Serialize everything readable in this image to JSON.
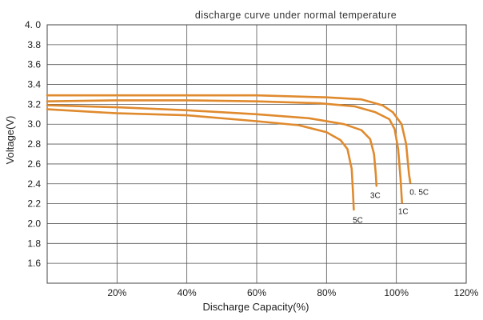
{
  "chart_data": {
    "type": "line",
    "title": "discharge curve under normal temperature",
    "xlabel": "Discharge Capacity(%)",
    "ylabel": "Voltage(V)",
    "xlim": [
      0,
      120
    ],
    "ylim": [
      1.4,
      4.0
    ],
    "grid": true,
    "x_ticks": [
      {
        "value": 20,
        "label": "20%"
      },
      {
        "value": 40,
        "label": "40%"
      },
      {
        "value": 60,
        "label": "60%"
      },
      {
        "value": 80,
        "label": "80%"
      },
      {
        "value": 100,
        "label": "100%"
      },
      {
        "value": 120,
        "label": "120%"
      }
    ],
    "y_ticks": [
      {
        "value": 1.6,
        "label": "1.6"
      },
      {
        "value": 1.8,
        "label": "1.8"
      },
      {
        "value": 2.0,
        "label": "2.0"
      },
      {
        "value": 2.2,
        "label": "2.2"
      },
      {
        "value": 2.4,
        "label": "2.4"
      },
      {
        "value": 2.6,
        "label": "2.6"
      },
      {
        "value": 2.8,
        "label": "2.8"
      },
      {
        "value": 3.0,
        "label": "3.0"
      },
      {
        "value": 3.2,
        "label": "3.2"
      },
      {
        "value": 3.4,
        "label": "3.4"
      },
      {
        "value": 3.6,
        "label": "3.6"
      },
      {
        "value": 3.8,
        "label": "3.8"
      },
      {
        "value": 4.0,
        "label": "4. 0"
      }
    ],
    "line_color": "#e08a2e",
    "series": [
      {
        "name": "0. 5C",
        "points": [
          [
            0,
            3.29
          ],
          [
            20,
            3.29
          ],
          [
            40,
            3.29
          ],
          [
            60,
            3.29
          ],
          [
            80,
            3.27
          ],
          [
            90,
            3.25
          ],
          [
            96,
            3.19
          ],
          [
            99,
            3.12
          ],
          [
            101.5,
            3.0
          ],
          [
            102.8,
            2.8
          ],
          [
            103.6,
            2.5
          ],
          [
            104,
            2.41
          ]
        ],
        "label_at": [
          103.8,
          2.32
        ]
      },
      {
        "name": "1C",
        "points": [
          [
            0,
            3.23
          ],
          [
            20,
            3.24
          ],
          [
            40,
            3.24
          ],
          [
            60,
            3.23
          ],
          [
            78,
            3.21
          ],
          [
            88,
            3.18
          ],
          [
            94,
            3.12
          ],
          [
            98,
            3.05
          ],
          [
            99.5,
            2.95
          ],
          [
            100.5,
            2.75
          ],
          [
            101.2,
            2.45
          ],
          [
            101.6,
            2.21
          ]
        ],
        "label_at": [
          100.5,
          2.13
        ]
      },
      {
        "name": "3C",
        "points": [
          [
            0,
            3.19
          ],
          [
            20,
            3.17
          ],
          [
            40,
            3.14
          ],
          [
            60,
            3.1
          ],
          [
            75,
            3.06
          ],
          [
            85,
            3.0
          ],
          [
            90,
            2.94
          ],
          [
            92.5,
            2.85
          ],
          [
            93.6,
            2.7
          ],
          [
            94.1,
            2.5
          ],
          [
            94.3,
            2.38
          ]
        ],
        "label_at": [
          92.5,
          2.29
        ]
      },
      {
        "name": "5C",
        "points": [
          [
            0,
            3.15
          ],
          [
            20,
            3.11
          ],
          [
            40,
            3.09
          ],
          [
            60,
            3.03
          ],
          [
            72,
            2.99
          ],
          [
            80,
            2.92
          ],
          [
            84,
            2.84
          ],
          [
            86,
            2.75
          ],
          [
            87.2,
            2.55
          ],
          [
            87.6,
            2.3
          ],
          [
            87.8,
            2.14
          ]
        ],
        "label_at": [
          87.5,
          2.04
        ]
      }
    ]
  }
}
